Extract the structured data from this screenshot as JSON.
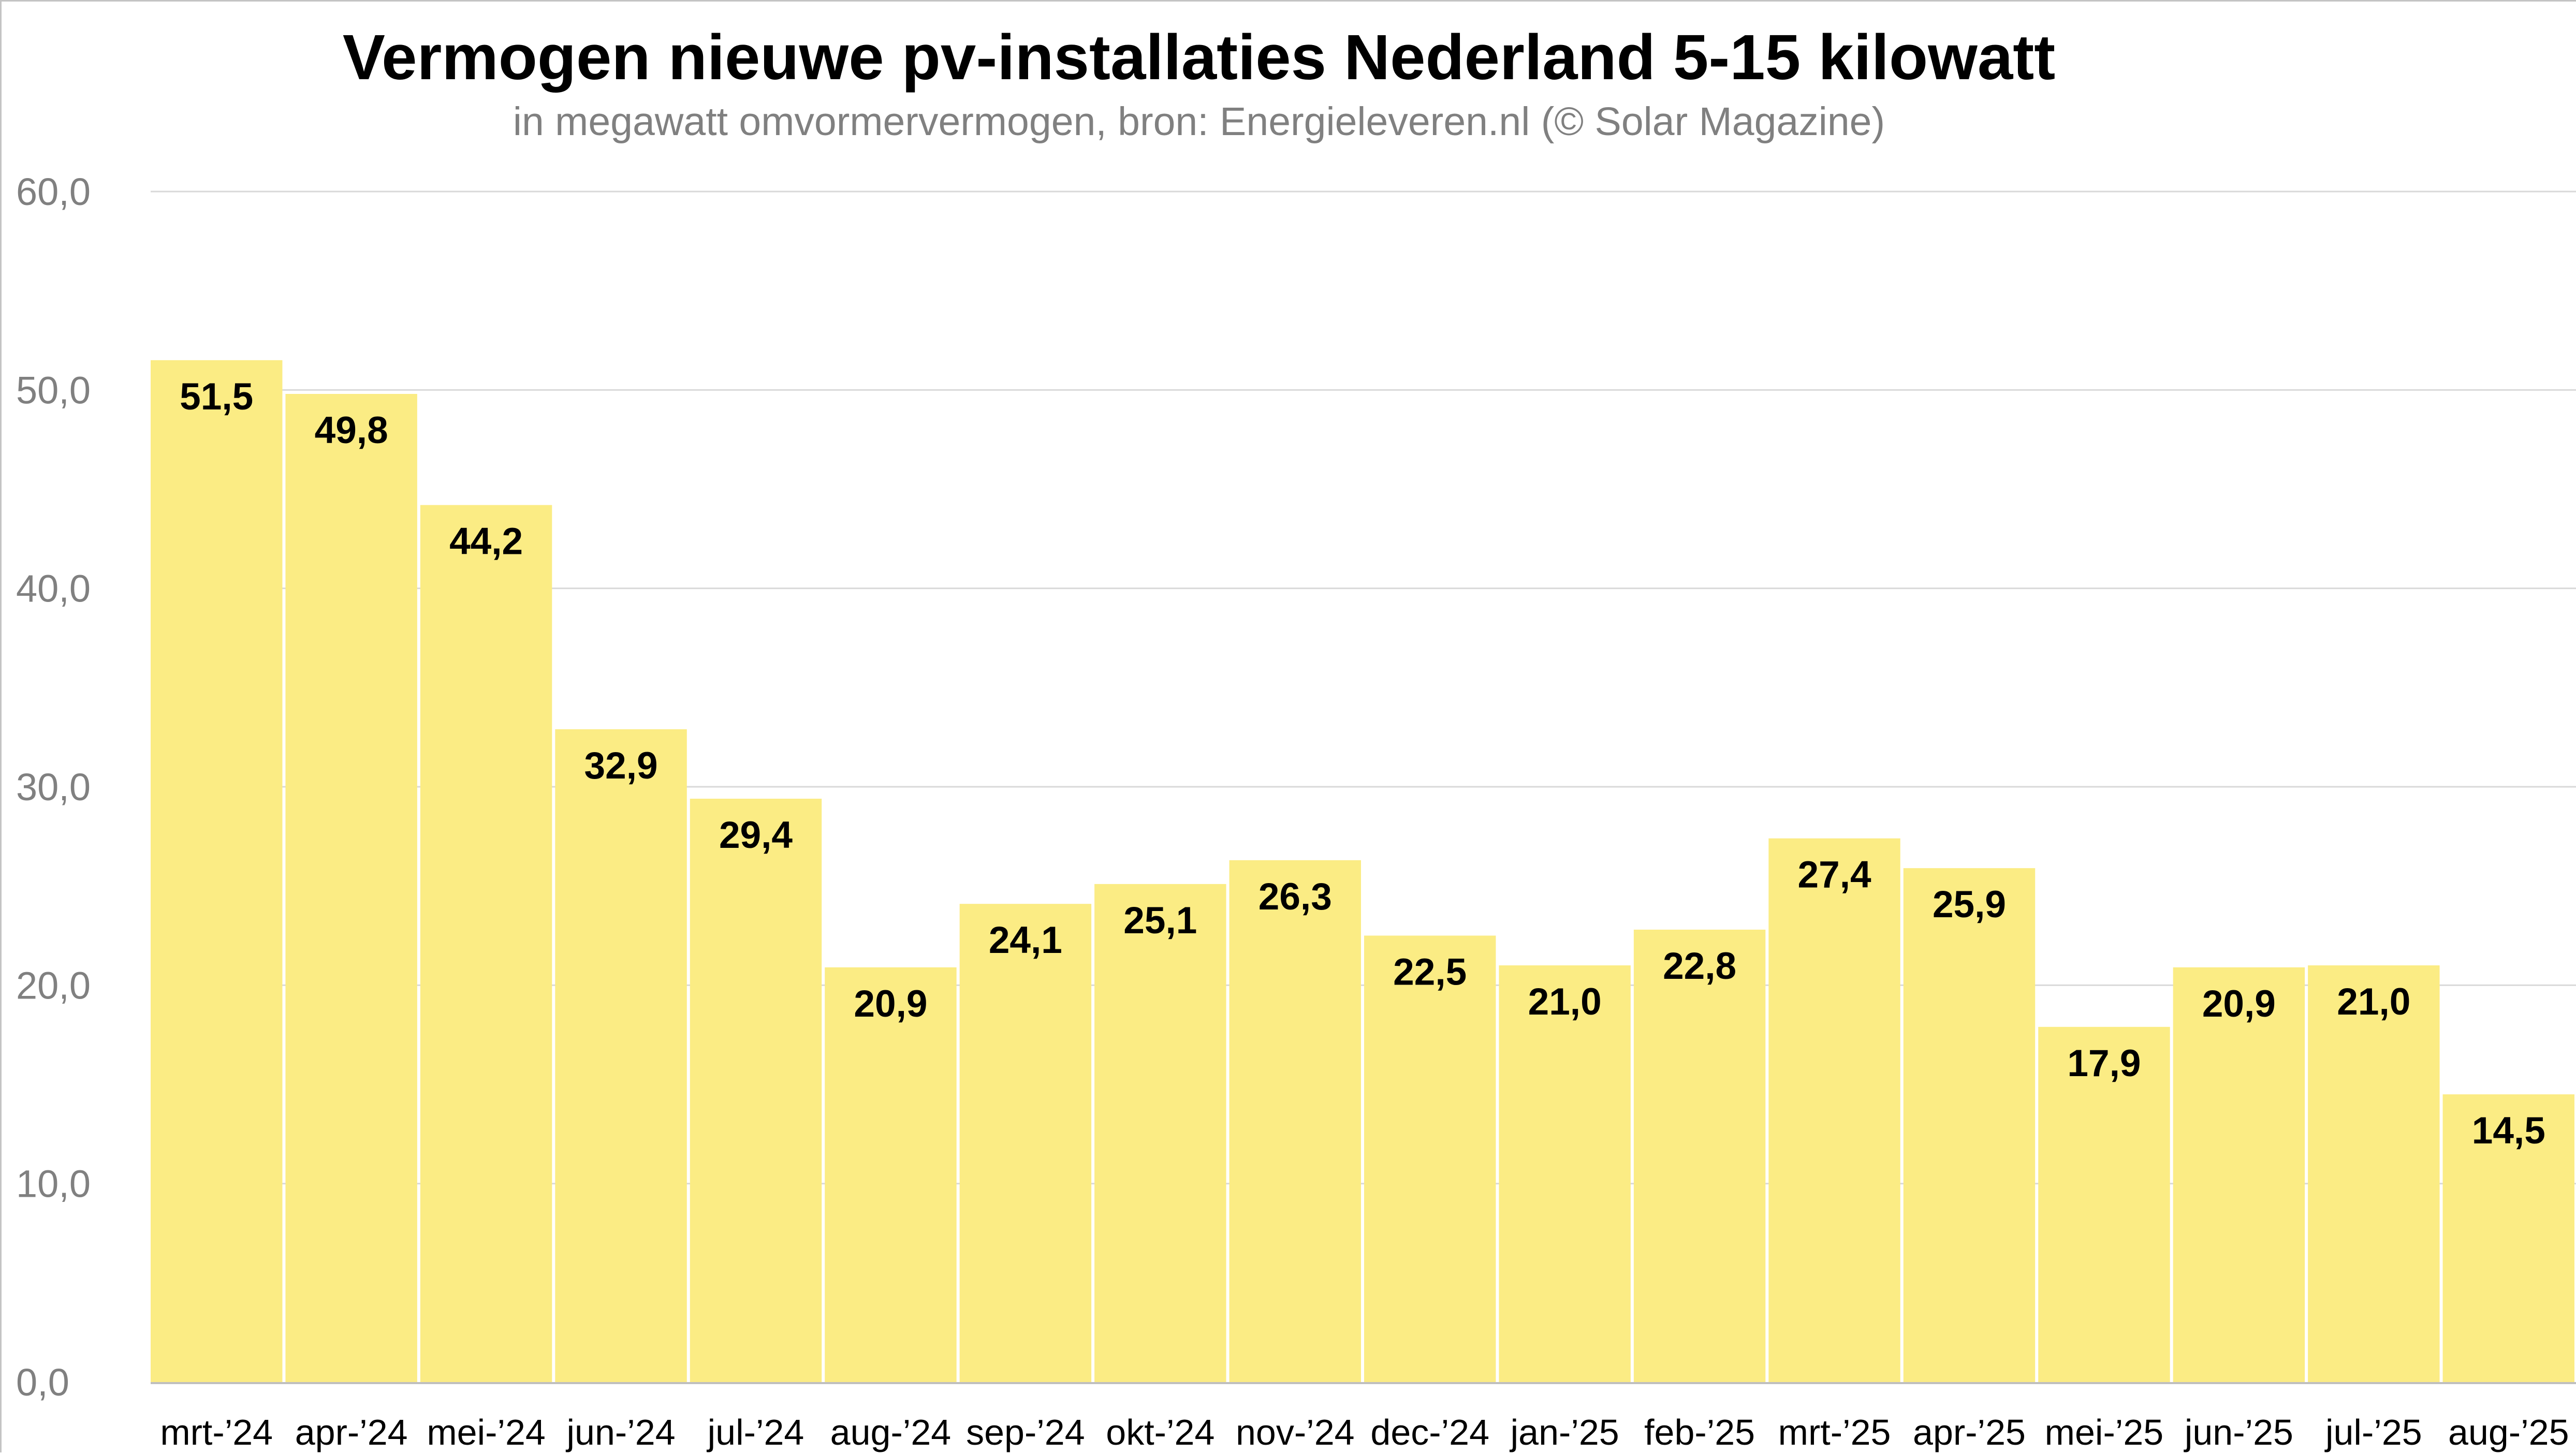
{
  "chart_data": {
    "type": "bar",
    "title": "Vermogen nieuwe pv-installaties Nederland 5-15 kilowatt",
    "subtitle": "in megawatt omvormervermogen, bron: Energieleveren.nl (© Solar Magazine)",
    "xlabel": "",
    "ylabel": "",
    "categories": [
      "mrt-’24",
      "apr-’24",
      "mei-’24",
      "jun-’24",
      "jul-’24",
      "aug-’24",
      "sep-’24",
      "okt-’24",
      "nov-’24",
      "dec-’24",
      "jan-’25",
      "feb-’25",
      "mrt-’25",
      "apr-’25",
      "mei-’25",
      "jun-’25",
      "jul-’25",
      "aug-’25"
    ],
    "values": [
      51.5,
      49.8,
      44.2,
      32.9,
      29.4,
      20.9,
      24.1,
      25.1,
      26.3,
      22.5,
      21.0,
      22.8,
      27.4,
      25.9,
      17.9,
      20.9,
      21.0,
      14.5
    ],
    "data_labels": [
      "51,5",
      "49,8",
      "44,2",
      "32,9",
      "29,4",
      "20,9",
      "24,1",
      "25,1",
      "26,3",
      "22,5",
      "21,0",
      "22,8",
      "27,4",
      "25,9",
      "17,9",
      "20,9",
      "21,0",
      "14,5"
    ],
    "ylim": [
      0,
      60
    ],
    "yticks": [
      0,
      10,
      20,
      30,
      40,
      50,
      60
    ],
    "ytick_labels": [
      "0,0",
      "10,0",
      "20,0",
      "30,0",
      "40,0",
      "50,0",
      "60,0"
    ],
    "grid": true,
    "legend": "none",
    "colors": {
      "bar": "#fbec84",
      "gridline": "#d9d9d9",
      "axis": "#bfbfbf",
      "ytick_text": "#808080",
      "title": "#000000",
      "subtitle": "#808080"
    }
  }
}
